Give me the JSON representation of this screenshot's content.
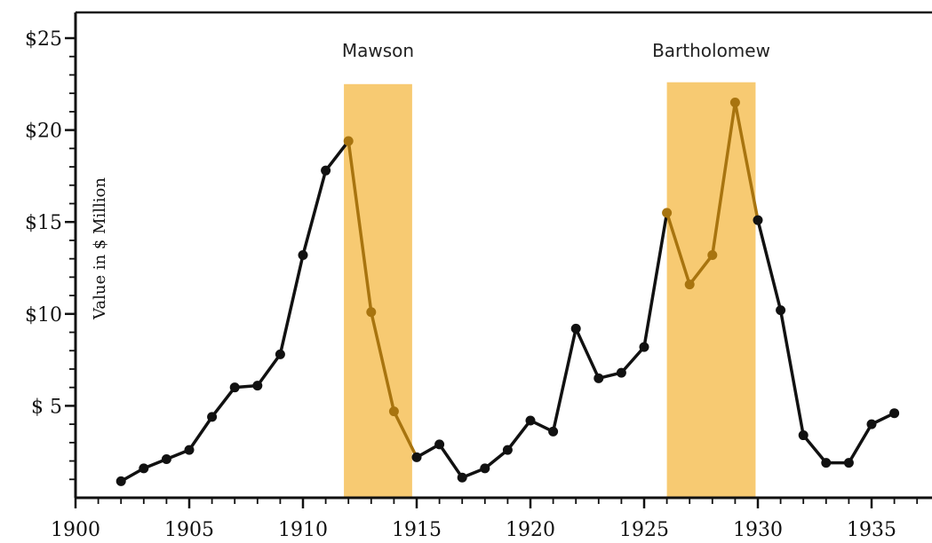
{
  "chart_data": {
    "type": "line",
    "title": "",
    "xlabel": "",
    "ylabel": "Value in $ Million",
    "xlim": [
      1900,
      1938
    ],
    "ylim": [
      0,
      26
    ],
    "x_ticks": [
      1900,
      1905,
      1910,
      1915,
      1920,
      1925,
      1930,
      1935
    ],
    "x_tick_labels": [
      "1900",
      "1905",
      "1910",
      "1915",
      "1920",
      "1925",
      "1930",
      "1935"
    ],
    "y_ticks": [
      5,
      10,
      15,
      20,
      25
    ],
    "y_tick_labels": [
      "$ 5",
      "$10",
      "$15",
      "$20",
      "$25"
    ],
    "grid": false,
    "series": [
      {
        "name": "",
        "color": "#111111",
        "highlight_color": "#a8740f",
        "x": [
          1902,
          1903,
          1904,
          1905,
          1906,
          1907,
          1908,
          1909,
          1910,
          1911,
          1912,
          1913,
          1914,
          1915,
          1916,
          1917,
          1918,
          1919,
          1920,
          1921,
          1922,
          1923,
          1924,
          1925,
          1926,
          1927,
          1928,
          1929,
          1930,
          1931,
          1932,
          1933,
          1934,
          1935,
          1936
        ],
        "y": [
          0.9,
          1.6,
          2.1,
          2.6,
          4.4,
          6.0,
          6.1,
          7.8,
          13.2,
          17.8,
          19.4,
          10.1,
          4.7,
          2.2,
          2.9,
          1.1,
          1.6,
          2.6,
          4.2,
          3.6,
          9.2,
          6.5,
          6.8,
          8.2,
          15.5,
          11.6,
          13.2,
          21.5,
          15.1,
          10.2,
          3.4,
          1.9,
          1.9,
          4.0,
          4.6
        ]
      }
    ],
    "bands": [
      {
        "label": "Mawson",
        "x_start": 1911.8,
        "x_end": 1914.8,
        "y_top": 22.5,
        "color": "#f7ca72"
      },
      {
        "label": "Bartholomew",
        "x_start": 1926.0,
        "x_end": 1929.9,
        "y_top": 22.6,
        "color": "#f7ca72"
      }
    ]
  }
}
